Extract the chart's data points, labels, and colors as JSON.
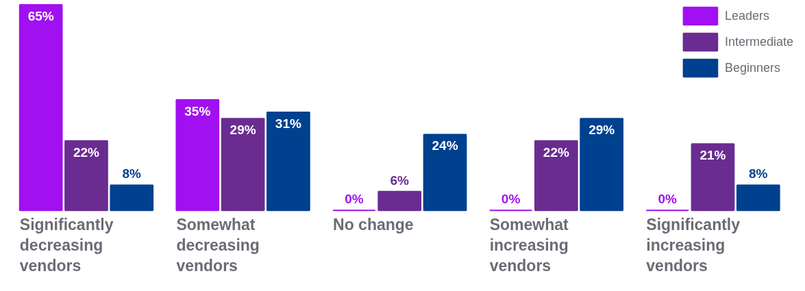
{
  "chart_data": {
    "type": "bar",
    "categories": [
      "Significantly\ndecreasing\nvendors",
      "Somewhat\ndecreasing\nvendors",
      "No change",
      "Somewhat\nincreasing\nvendors",
      "Significantly\nincreasing\nvendors"
    ],
    "series": [
      {
        "name": "Leaders",
        "color": "#a010f0",
        "values": [
          65,
          35,
          0,
          0,
          0
        ],
        "value_labels": [
          "65%",
          "35%",
          "0%",
          "0%",
          "0%"
        ]
      },
      {
        "name": "Intermediate",
        "color": "#6a2c91",
        "values": [
          22,
          29,
          6,
          22,
          21
        ],
        "value_labels": [
          "22%",
          "29%",
          "6%",
          "22%",
          "21%"
        ]
      },
      {
        "name": "Beginners",
        "color": "#00418f",
        "values": [
          8,
          31,
          24,
          29,
          8
        ],
        "value_labels": [
          "8%",
          "31%",
          "24%",
          "29%",
          "8%"
        ]
      }
    ],
    "legend": "top right",
    "grid": false
  }
}
